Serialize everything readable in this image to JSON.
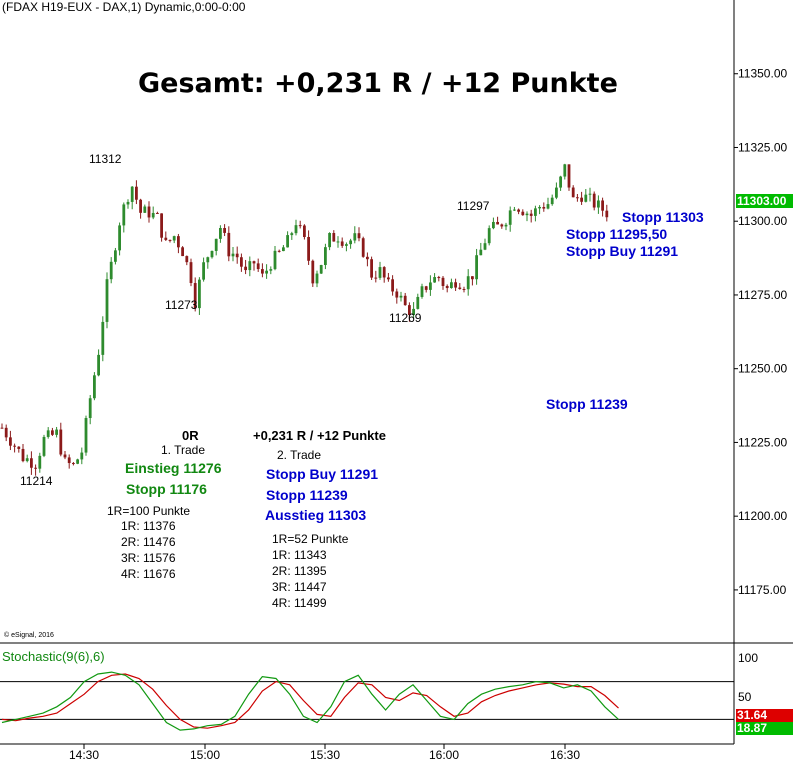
{
  "header": {
    "title": "(FDAX H19-EUX - DAX,1) Dynamic,0:00-0:00"
  },
  "headline": "Gesamt: +0,231 R / +12 Punkte",
  "copyright": "© eSignal, 2016",
  "current_price": "11303.00",
  "stochastic": {
    "label": "Stochastic(9(6),6)",
    "k_value": "31.64",
    "d_value": "18.87",
    "levels": [
      "100",
      "50"
    ]
  },
  "annotations": {
    "pivots": [
      "11312",
      "11273",
      "11269",
      "11297",
      "11214"
    ],
    "right_stops": [
      "Stopp 11303",
      "Stopp 11295,50",
      "Stopp Buy 11291"
    ],
    "stop_mid": "Stopp 11239"
  },
  "trade1": {
    "result": "0R",
    "name": "1. Trade",
    "entry": "Einstieg 11276",
    "stop": "Stopp 11176",
    "r_def": "1R=100 Punkte",
    "targets": [
      "1R: 11376",
      "2R: 11476",
      "3R: 11576",
      "4R: 11676"
    ]
  },
  "trade2": {
    "result": "+0,231 R / +12 Punkte",
    "name": "2. Trade",
    "lines": [
      "Stopp Buy 11291",
      "Stopp 11239",
      "Ausstieg 11303"
    ],
    "r_def": "1R=52 Punkte",
    "targets": [
      "1R: 11343",
      "2R: 11395",
      "3R: 11447",
      "4R: 11499"
    ]
  },
  "chart_data": {
    "type": "candlestick",
    "instrument": "FDAX H19-EUX",
    "ylim": [
      11157,
      11375
    ],
    "yticks": [
      11175,
      11200,
      11225,
      11250,
      11275,
      11300,
      11325,
      11350
    ],
    "ytick_labels": [
      "11175.00",
      "11200.00",
      "11225.00",
      "11250.00",
      "11275.00",
      "11300.00",
      "11325.00",
      "11350.00"
    ],
    "xtick_labels": [
      "14:30",
      "15:00",
      "15:30",
      "16:00",
      "16:30"
    ],
    "close_path": [
      [
        0,
        11230
      ],
      [
        5,
        11220
      ],
      [
        8,
        11218
      ],
      [
        10,
        11226
      ],
      [
        13,
        11228
      ],
      [
        15,
        11218
      ],
      [
        17,
        11217
      ],
      [
        19,
        11222
      ],
      [
        21,
        11240
      ],
      [
        23,
        11256
      ],
      [
        25,
        11278
      ],
      [
        26,
        11285
      ],
      [
        28,
        11300
      ],
      [
        30,
        11309
      ],
      [
        31,
        11312
      ],
      [
        33,
        11303
      ],
      [
        35,
        11303
      ],
      [
        37,
        11301
      ],
      [
        39,
        11292
      ],
      [
        41,
        11295
      ],
      [
        43,
        11290
      ],
      [
        45,
        11281
      ],
      [
        46,
        11273
      ],
      [
        48,
        11285
      ],
      [
        50,
        11292
      ],
      [
        52,
        11298
      ],
      [
        54,
        11290
      ],
      [
        56,
        11288
      ],
      [
        58,
        11282
      ],
      [
        60,
        11286
      ],
      [
        62,
        11281
      ],
      [
        64,
        11286
      ],
      [
        66,
        11289
      ],
      [
        68,
        11293
      ],
      [
        70,
        11300
      ],
      [
        72,
        11293
      ],
      [
        74,
        11281
      ],
      [
        76,
        11286
      ],
      [
        78,
        11294
      ],
      [
        80,
        11295
      ],
      [
        82,
        11293
      ],
      [
        84,
        11294
      ],
      [
        86,
        11290
      ],
      [
        88,
        11282
      ],
      [
        90,
        11283
      ],
      [
        92,
        11278
      ],
      [
        94,
        11276
      ],
      [
        96,
        11271
      ],
      [
        98,
        11269
      ],
      [
        100,
        11276
      ],
      [
        102,
        11280
      ],
      [
        104,
        11281
      ],
      [
        106,
        11277
      ],
      [
        108,
        11280
      ],
      [
        110,
        11279
      ],
      [
        112,
        11282
      ],
      [
        114,
        11290
      ],
      [
        116,
        11297
      ],
      [
        118,
        11298
      ],
      [
        120,
        11301
      ],
      [
        122,
        11306
      ],
      [
        124,
        11304
      ],
      [
        126,
        11302
      ],
      [
        128,
        11305
      ],
      [
        130,
        11306
      ],
      [
        132,
        11310
      ],
      [
        134,
        11318
      ],
      [
        136,
        11307
      ],
      [
        138,
        11309
      ],
      [
        140,
        11307
      ],
      [
        142,
        11305
      ],
      [
        144,
        11303
      ]
    ],
    "stochastic": {
      "k": [
        [
          0,
          15
        ],
        [
          2,
          20
        ],
        [
          4,
          25
        ],
        [
          6,
          30
        ],
        [
          8,
          40
        ],
        [
          10,
          55
        ],
        [
          12,
          80
        ],
        [
          14,
          92
        ],
        [
          16,
          95
        ],
        [
          18,
          90
        ],
        [
          20,
          75
        ],
        [
          22,
          45
        ],
        [
          24,
          15
        ],
        [
          26,
          3
        ],
        [
          28,
          5
        ],
        [
          30,
          10
        ],
        [
          32,
          12
        ],
        [
          34,
          25
        ],
        [
          36,
          60
        ],
        [
          38,
          88
        ],
        [
          40,
          85
        ],
        [
          42,
          60
        ],
        [
          44,
          25
        ],
        [
          46,
          15
        ],
        [
          48,
          40
        ],
        [
          50,
          80
        ],
        [
          52,
          90
        ],
        [
          54,
          60
        ],
        [
          56,
          35
        ],
        [
          58,
          60
        ],
        [
          60,
          75
        ],
        [
          62,
          50
        ],
        [
          64,
          25
        ],
        [
          66,
          20
        ],
        [
          68,
          45
        ],
        [
          70,
          60
        ],
        [
          72,
          68
        ],
        [
          74,
          72
        ],
        [
          76,
          75
        ],
        [
          78,
          80
        ],
        [
          80,
          78
        ],
        [
          82,
          70
        ],
        [
          84,
          75
        ],
        [
          86,
          65
        ],
        [
          88,
          40
        ],
        [
          90,
          20
        ]
      ],
      "d": [
        [
          0,
          20
        ],
        [
          2,
          18
        ],
        [
          4,
          22
        ],
        [
          6,
          25
        ],
        [
          8,
          30
        ],
        [
          10,
          45
        ],
        [
          12,
          60
        ],
        [
          14,
          80
        ],
        [
          16,
          90
        ],
        [
          18,
          92
        ],
        [
          20,
          85
        ],
        [
          22,
          68
        ],
        [
          24,
          42
        ],
        [
          26,
          20
        ],
        [
          28,
          8
        ],
        [
          30,
          6
        ],
        [
          32,
          10
        ],
        [
          34,
          15
        ],
        [
          36,
          35
        ],
        [
          38,
          65
        ],
        [
          40,
          80
        ],
        [
          42,
          75
        ],
        [
          44,
          50
        ],
        [
          46,
          28
        ],
        [
          48,
          25
        ],
        [
          50,
          55
        ],
        [
          52,
          78
        ],
        [
          54,
          75
        ],
        [
          56,
          55
        ],
        [
          58,
          50
        ],
        [
          60,
          62
        ],
        [
          62,
          58
        ],
        [
          64,
          40
        ],
        [
          66,
          25
        ],
        [
          68,
          30
        ],
        [
          70,
          48
        ],
        [
          72,
          58
        ],
        [
          74,
          65
        ],
        [
          76,
          70
        ],
        [
          78,
          75
        ],
        [
          80,
          78
        ],
        [
          82,
          76
        ],
        [
          84,
          72
        ],
        [
          86,
          72
        ],
        [
          88,
          58
        ],
        [
          90,
          38
        ]
      ]
    }
  }
}
